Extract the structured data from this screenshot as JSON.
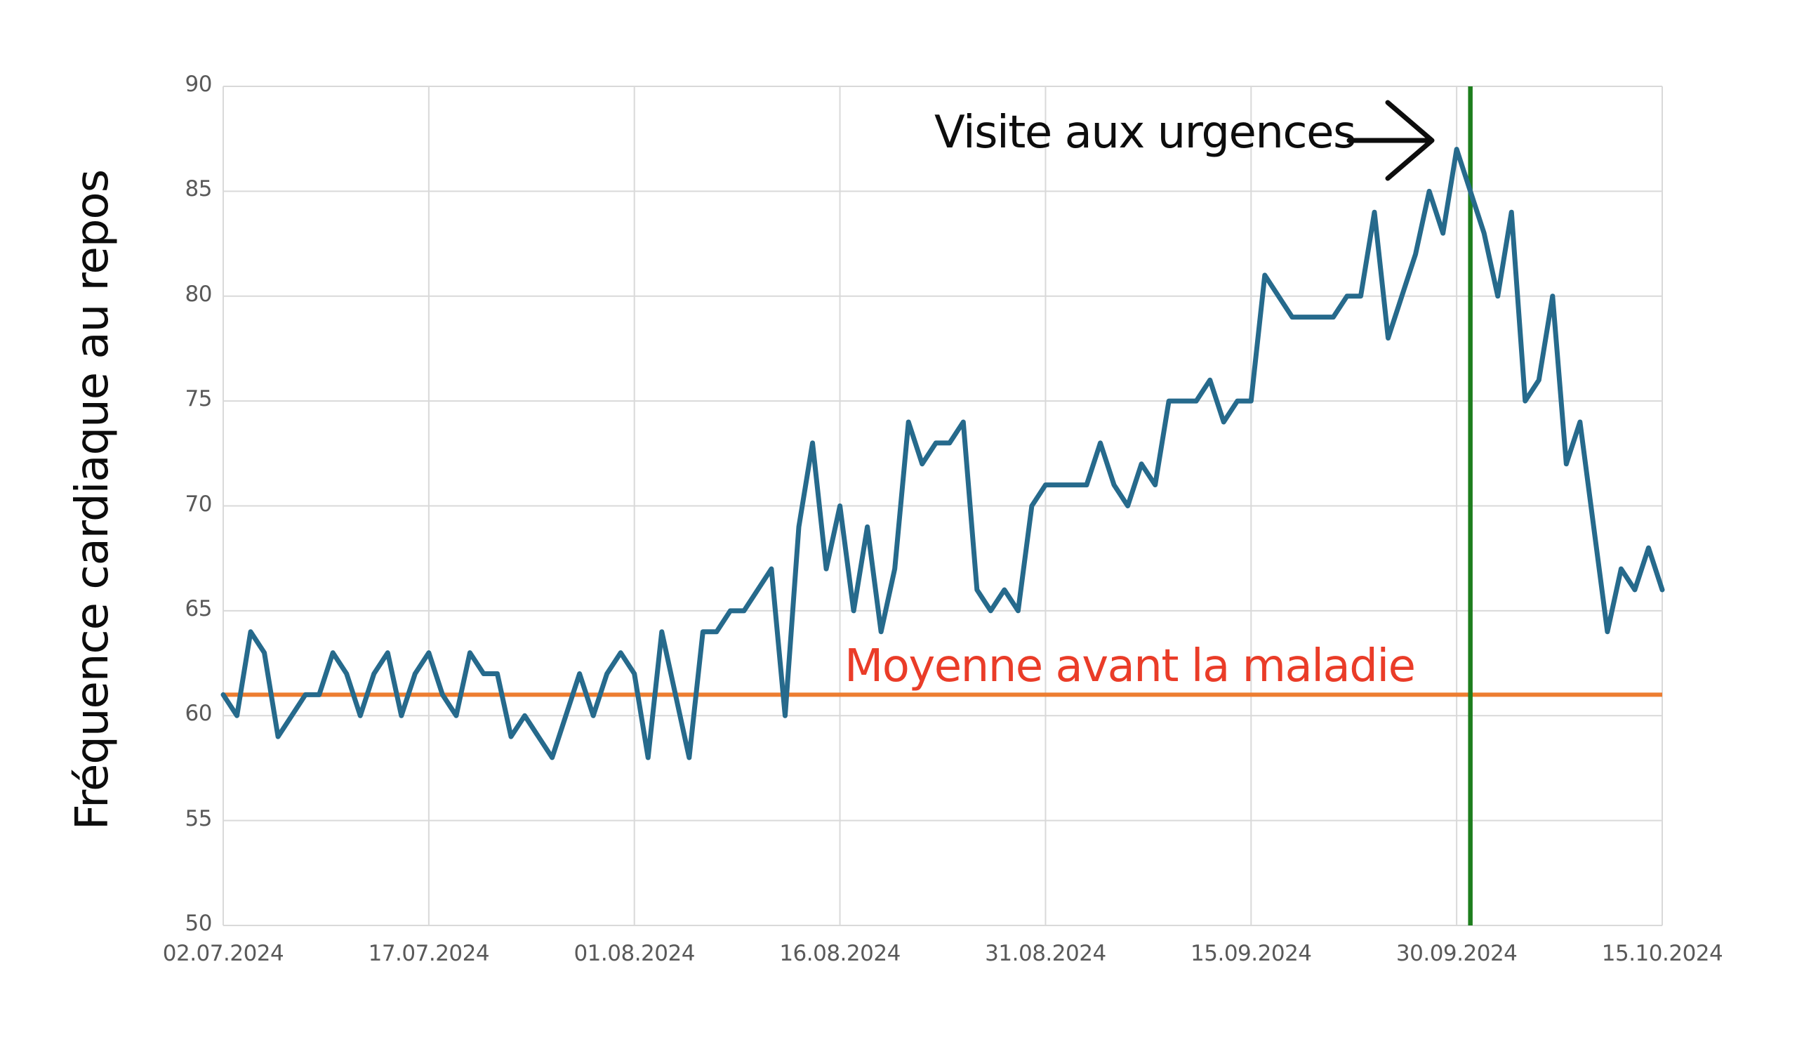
{
  "chart_data": {
    "type": "line",
    "ylabel": "Fréquence cardiaque au repos",
    "ylim": [
      50,
      90
    ],
    "y_ticks": [
      50,
      55,
      60,
      65,
      70,
      75,
      80,
      85,
      90
    ],
    "x_tick_labels": [
      "02.07.2024",
      "17.07.2024",
      "01.08.2024",
      "16.08.2024",
      "31.08.2024",
      "15.09.2024",
      "30.09.2024",
      "15.10.2024"
    ],
    "x_tick_day_interval": 15,
    "grid": true,
    "series": [
      {
        "name": "Fréquence cardiaque au repos",
        "start_date": "02.07.2024",
        "end_date": "15.10.2024",
        "color": "#266a8c",
        "values": [
          61,
          60,
          64,
          63,
          59,
          60,
          61,
          61,
          63,
          62,
          60,
          62,
          63,
          60,
          62,
          63,
          61,
          60,
          63,
          62,
          62,
          59,
          60,
          59,
          58,
          60,
          62,
          60,
          62,
          63,
          62,
          58,
          64,
          61,
          58,
          64,
          64,
          65,
          65,
          66,
          67,
          60,
          69,
          73,
          67,
          70,
          65,
          69,
          64,
          67,
          74,
          72,
          73,
          73,
          74,
          66,
          65,
          66,
          65,
          70,
          71,
          71,
          71,
          71,
          73,
          71,
          70,
          72,
          71,
          75,
          75,
          75,
          76,
          74,
          75,
          75,
          81,
          80,
          79,
          79,
          79,
          79,
          80,
          80,
          84,
          78,
          80,
          82,
          85,
          83,
          87,
          85,
          83,
          80,
          84,
          75,
          76,
          80,
          72,
          74,
          69,
          64,
          67,
          66,
          68,
          66
        ]
      }
    ],
    "baseline": {
      "label": "Moyenne avant la maladie",
      "value": 61,
      "line_color": "#ed7d31",
      "label_color": "#ea3c28"
    },
    "event_line": {
      "label": "Visite aux urgences",
      "date": "01.10.2024",
      "day_index": 91,
      "color": "#1e7e1e"
    },
    "grid_color": "#d9d9d9",
    "tick_label_color": "#595959"
  }
}
